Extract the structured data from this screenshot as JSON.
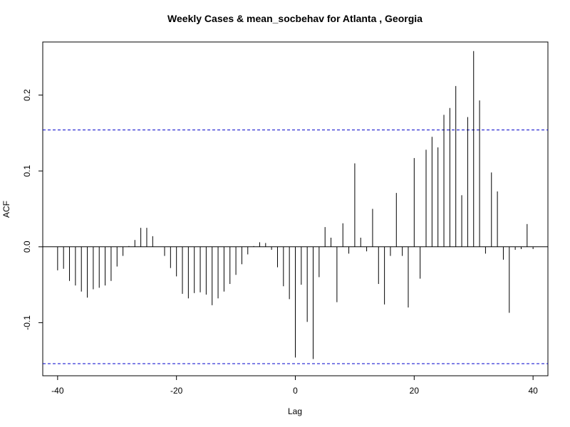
{
  "chart_data": {
    "type": "bar",
    "title": "Weekly Cases & mean_socbehav for Atlanta , Georgia",
    "xlabel": "Lag",
    "ylabel": "ACF",
    "xlim": [
      -42.5,
      42.5
    ],
    "ylim": [
      -0.17,
      0.27
    ],
    "x_ticks": [
      -40,
      -20,
      0,
      20,
      40
    ],
    "y_ticks": [
      -0.1,
      0.0,
      0.1,
      0.2
    ],
    "y_tick_labels": [
      "-0.1",
      "0.0",
      "0.1",
      "0.2"
    ],
    "x_tick_labels": [
      "-40",
      "-20",
      "0",
      "20",
      "40"
    ],
    "confidence_bound": 0.154,
    "confidence_line_color": "#0000cc",
    "grid": false,
    "lags": [
      -40,
      -39,
      -38,
      -37,
      -36,
      -35,
      -34,
      -33,
      -32,
      -31,
      -30,
      -29,
      -28,
      -27,
      -26,
      -25,
      -24,
      -23,
      -22,
      -21,
      -20,
      -19,
      -18,
      -17,
      -16,
      -15,
      -14,
      -13,
      -12,
      -11,
      -10,
      -9,
      -8,
      -7,
      -6,
      -5,
      -4,
      -3,
      -2,
      -1,
      0,
      1,
      2,
      3,
      4,
      5,
      6,
      7,
      8,
      9,
      10,
      11,
      12,
      13,
      14,
      15,
      16,
      17,
      18,
      19,
      20,
      21,
      22,
      23,
      24,
      25,
      26,
      27,
      28,
      29,
      30,
      31,
      32,
      33,
      34,
      35,
      36,
      37,
      38,
      39,
      40
    ],
    "values": [
      -0.031,
      -0.029,
      -0.045,
      -0.051,
      -0.059,
      -0.067,
      -0.056,
      -0.054,
      -0.051,
      -0.045,
      -0.026,
      -0.012,
      0.001,
      0.009,
      0.025,
      0.025,
      0.014,
      0.0,
      -0.012,
      -0.028,
      -0.039,
      -0.062,
      -0.068,
      -0.061,
      -0.06,
      -0.063,
      -0.077,
      -0.068,
      -0.059,
      -0.049,
      -0.037,
      -0.023,
      -0.01,
      0.001,
      0.006,
      0.005,
      -0.004,
      -0.027,
      -0.052,
      -0.069,
      -0.146,
      -0.05,
      -0.099,
      -0.148,
      -0.04,
      0.026,
      0.012,
      -0.073,
      0.031,
      -0.009,
      0.11,
      0.012,
      -0.006,
      0.05,
      -0.049,
      -0.076,
      -0.012,
      0.071,
      -0.012,
      -0.08,
      0.117,
      -0.042,
      0.128,
      0.145,
      0.131,
      0.174,
      0.183,
      0.212,
      0.068,
      0.171,
      0.258,
      0.193,
      -0.009,
      0.098,
      0.073,
      -0.017,
      -0.087,
      -0.004,
      -0.003,
      0.03,
      -0.003
    ]
  }
}
